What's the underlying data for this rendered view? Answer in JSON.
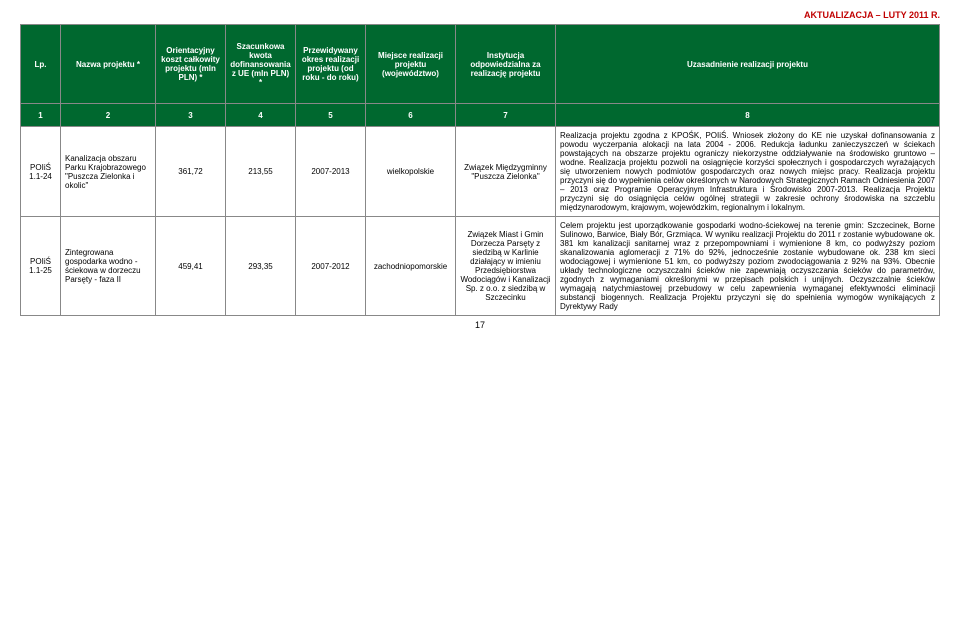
{
  "colors": {
    "header_bg": "#00682f",
    "update_text": "#c00000",
    "border": "#888888",
    "text": "#000000",
    "bg": "#ffffff"
  },
  "update_label": "AKTUALIZACJA – LUTY 2011 R.",
  "page_number": "17",
  "headers": {
    "c0": "Lp.",
    "c1": "Nazwa projektu *",
    "c2": "Orientacyjny koszt całkowity projektu (mln PLN) *",
    "c3": "Szacunkowa kwota dofinansowania z UE (mln PLN) *",
    "c4": "Przewidywany okres realizacji projektu (od roku - do roku)",
    "c5": "Miejsce realizacji projektu (województwo)",
    "c6": "Instytucja odpowiedzialna za realizację projektu",
    "c7": "Uzasadnienie realizacji projektu"
  },
  "numrow": {
    "c0": "1",
    "c1": "2",
    "c2": "3",
    "c3": "4",
    "c4": "5",
    "c5": "6",
    "c6": "7",
    "c7": "8"
  },
  "rows": [
    {
      "lp": "POIiŚ 1.1-24",
      "name": "Kanalizacja obszaru Parku Krajobrazowego \"Puszcza Zielonka i okolic\"",
      "cost": "361,72",
      "eu": "213,55",
      "period": "2007-2013",
      "place": "wielkopolskie",
      "inst": "Związek Międzygminny \"Puszcza Zielonka\"",
      "just": "Realizacja projektu zgodna z KPOŚK, POIiŚ. Wniosek złożony do KE nie uzyskał dofinansowania z powodu wyczerpania alokacji na lata 2004 - 2006. Redukcja ładunku zanieczyszczeń w ściekach powstających na obszarze projektu ograniczy niekorzystne oddziaływanie na środowisko gruntowo – wodne. Realizacja projektu pozwoli na osiągnięcie korzyści społecznych i gospodarczych wyrażających się utworzeniem nowych podmiotów gospodarczych oraz nowych miejsc pracy. Realizacja projektu przyczyni się do wypełnienia celów określonych w Narodowych Strategicznych Ramach Odniesienia 2007 – 2013 oraz Programie Operacyjnym Infrastruktura i Środowisko 2007-2013. Realizacja Projektu przyczyni się do osiągnięcia celów ogólnej strategii w zakresie ochrony środowiska na szczeblu międzynarodowym, krajowym, wojewódzkim, regionalnym i lokalnym."
    },
    {
      "lp": "POIiŚ 1.1-25",
      "name": "Zintegrowana gospodarka wodno - ściekowa w dorzeczu Parsęty - faza II",
      "cost": "459,41",
      "eu": "293,35",
      "period": "2007-2012",
      "place": "zachodniopomorskie",
      "inst": "Związek Miast i Gmin Dorzecza Parsęty z siedzibą w Karlinie działający w imieniu Przedsiębiorstwa Wodociągów i Kanalizacji Sp. z o.o. z siedzibą w Szczecinku",
      "just": "Celem projektu jest uporządkowanie gospodarki wodno-ściekowej na terenie gmin: Szczecinek, Borne Sulinowo, Barwice, Biały Bór, Grzmiąca. W wyniku realizacji Projektu do 2011 r zostanie wybudowane ok. 381 km kanalizacji sanitarnej wraz z przepompowniami i wymienione 8 km, co podwyższy poziom skanalizowania aglomeracji z 71% do 92%, jednocześnie zostanie wybudowane ok. 238 km sieci wodociągowej i wymienione 51 km, co podwyższy poziom zwodociągowania z 92% na 93%. Obecnie układy technologiczne oczyszczalni ścieków nie zapewniają oczyszczania ścieków do parametrów, zgodnych z wymaganiami określonymi w przepisach polskich i unijnych. Oczyszczalnie ścieków wymagają natychmiastowej przebudowy w celu zapewnienia wymaganej efektywności eliminacji substancji biogennych. Realizacja Projektu przyczyni się do spełnienia wymogów wynikających z Dyrektywy Rady"
    }
  ]
}
